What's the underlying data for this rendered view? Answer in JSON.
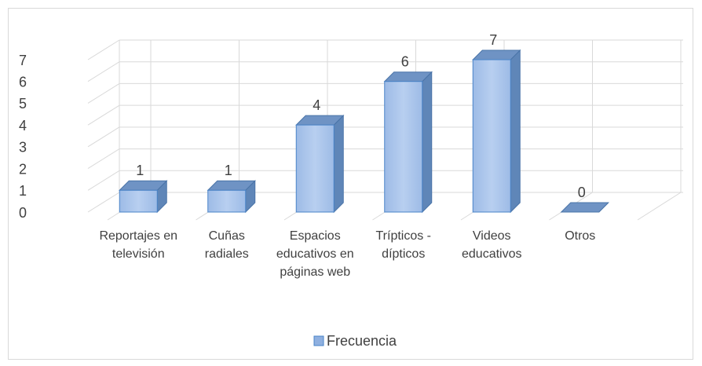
{
  "chart_data": {
    "type": "bar3d",
    "categories": [
      "Reportajes en televisión",
      "Cuñas radiales",
      "Espacios educativos en páginas web",
      "Trípticos - dípticos",
      "Videos educativos",
      "Otros"
    ],
    "series": [
      {
        "name": "Frecuencia",
        "color": "#8fb0e0",
        "values": [
          1,
          1,
          4,
          6,
          7,
          0
        ]
      }
    ],
    "ylim": [
      0,
      7
    ],
    "yticks": [
      0,
      1,
      2,
      3,
      4,
      5,
      6,
      7
    ],
    "grid": true,
    "legend": "bottom"
  }
}
